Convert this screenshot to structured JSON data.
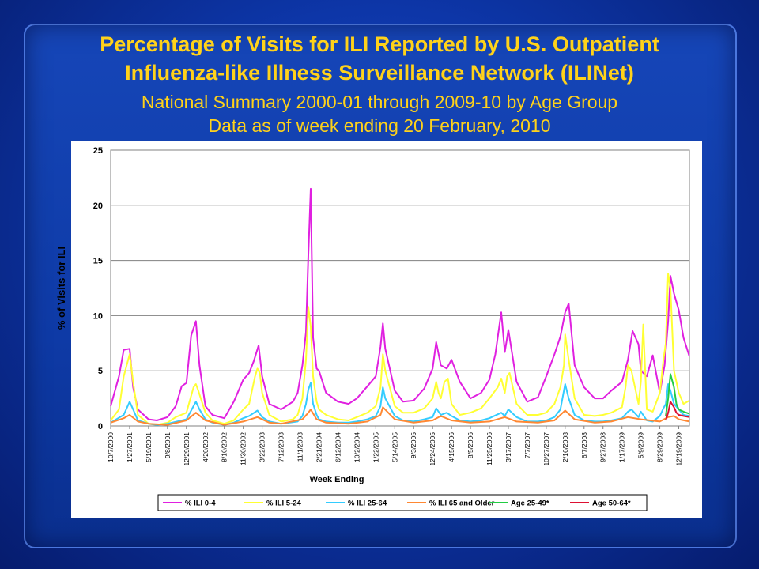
{
  "slide": {
    "title_line1": "Percentage of Visits for ILI Reported by U.S. Outpatient",
    "title_line2": "Influenza-like Illness Surveillance Network (ILINet)",
    "subtitle_line1": "National Summary 2000-01 through 2009-10 by Age Group",
    "subtitle_line2": "Data as of week ending 20 February,  2010"
  },
  "colors": {
    "title": "#ffd21a",
    "background": "#0e3aa6"
  },
  "chart_data": {
    "type": "line",
    "title": "",
    "xlabel": "Week Ending",
    "ylabel": "% of Visits for ILI",
    "ylim": [
      0,
      25
    ],
    "yticks": [
      0,
      5,
      10,
      15,
      20,
      25
    ],
    "grid": "horizontal",
    "legend_position": "bottom",
    "x_tick_labels": [
      "10/7/2000",
      "1/27/2001",
      "5/19/2001",
      "9/8/2001",
      "12/29/2001",
      "4/20/2002",
      "8/10/2002",
      "11/30/2002",
      "3/22/2003",
      "7/12/2003",
      "11/1/2003",
      "2/21/2004",
      "6/12/2004",
      "10/2/2004",
      "1/22/2005",
      "5/14/2005",
      "9/3/2005",
      "12/24/2005",
      "4/15/2006",
      "8/5/2006",
      "11/25/2006",
      "3/17/2007",
      "7/7/2007",
      "10/27/2007",
      "2/16/2008",
      "6/7/2008",
      "9/27/2008",
      "1/17/2009",
      "5/9/2009",
      "8/29/2009",
      "12/19/2009"
    ],
    "series": [
      {
        "name": "% ILI 0-4",
        "color": "#e020e0",
        "x": [
          "10/7/2000",
          "11/25/2000",
          "12/23/2000",
          "1/27/2001",
          "2/17/2001",
          "3/17/2001",
          "5/19/2001",
          "7/7/2001",
          "9/8/2001",
          "10/27/2001",
          "12/1/2001",
          "12/29/2001",
          "1/26/2002",
          "2/23/2002",
          "3/16/2002",
          "4/20/2002",
          "6/1/2002",
          "8/10/2002",
          "10/5/2002",
          "11/30/2002",
          "1/4/2003",
          "2/1/2003",
          "3/1/2003",
          "3/22/2003",
          "5/3/2003",
          "7/12/2003",
          "9/20/2003",
          "10/18/2003",
          "11/15/2003",
          "12/6/2003",
          "12/20/2003",
          "1/3/2004",
          "1/17/2004",
          "2/7/2004",
          "2/21/2004",
          "4/3/2004",
          "6/12/2004",
          "8/14/2004",
          "10/2/2004",
          "12/4/2004",
          "1/22/2005",
          "2/19/2005",
          "3/5/2005",
          "3/19/2005",
          "5/14/2005",
          "7/2/2005",
          "9/3/2005",
          "11/5/2005",
          "12/24/2005",
          "1/14/2006",
          "2/11/2006",
          "3/18/2006",
          "4/15/2006",
          "6/3/2006",
          "8/5/2006",
          "10/7/2006",
          "11/25/2006",
          "12/30/2006",
          "2/3/2007",
          "2/24/2007",
          "3/17/2007",
          "5/5/2007",
          "7/7/2007",
          "9/8/2007",
          "10/27/2007",
          "12/15/2007",
          "1/19/2008",
          "2/16/2008",
          "3/8/2008",
          "4/12/2008",
          "6/7/2008",
          "8/9/2008",
          "9/27/2008",
          "11/15/2008",
          "1/17/2009",
          "2/21/2009",
          "3/21/2009",
          "4/25/2009",
          "5/9/2009",
          "6/13/2009",
          "7/18/2009",
          "8/29/2009",
          "9/26/2009",
          "10/17/2009",
          "10/31/2009",
          "11/21/2009",
          "12/19/2009",
          "1/16/2010",
          "2/20/2010"
        ],
        "values": [
          1.8,
          4.5,
          6.9,
          7.0,
          3.5,
          1.5,
          0.6,
          0.5,
          0.8,
          1.8,
          3.6,
          3.9,
          8.2,
          9.5,
          5.5,
          1.8,
          1.0,
          0.7,
          2.2,
          4.2,
          4.8,
          5.9,
          7.3,
          4.5,
          2.0,
          1.5,
          2.2,
          3.0,
          5.5,
          8.5,
          15.5,
          21.5,
          8.0,
          5.2,
          5.0,
          3.0,
          2.2,
          2.0,
          2.5,
          3.6,
          4.5,
          7.2,
          9.3,
          7.0,
          3.2,
          2.2,
          2.3,
          3.4,
          5.2,
          7.6,
          5.5,
          5.2,
          6.0,
          4.0,
          2.5,
          3.0,
          4.2,
          6.5,
          10.3,
          6.7,
          8.7,
          4.0,
          2.2,
          2.6,
          4.5,
          6.5,
          8.1,
          10.3,
          11.1,
          5.5,
          3.5,
          2.5,
          2.5,
          3.2,
          4.0,
          6.0,
          8.6,
          7.4,
          5.0,
          4.5,
          6.4,
          3.0,
          5.5,
          9.5,
          13.6,
          12.0,
          10.5,
          8.0,
          6.3
        ]
      },
      {
        "name": "% ILI 5-24",
        "color": "#ffff33",
        "x": [
          "10/7/2000",
          "11/25/2000",
          "12/23/2000",
          "1/27/2001",
          "2/17/2001",
          "3/17/2001",
          "5/19/2001",
          "7/7/2001",
          "9/8/2001",
          "10/27/2001",
          "12/29/2001",
          "2/9/2002",
          "2/23/2002",
          "3/9/2002",
          "4/20/2002",
          "6/1/2002",
          "8/10/2002",
          "10/5/2002",
          "11/30/2002",
          "1/4/2003",
          "2/8/2003",
          "2/22/2003",
          "3/8/2003",
          "3/22/2003",
          "5/3/2003",
          "7/12/2003",
          "9/20/2003",
          "10/18/2003",
          "11/15/2003",
          "12/6/2003",
          "12/20/2003",
          "1/3/2004",
          "1/17/2004",
          "2/7/2004",
          "2/21/2004",
          "4/3/2004",
          "6/12/2004",
          "8/14/2004",
          "10/2/2004",
          "12/4/2004",
          "1/22/2005",
          "2/19/2005",
          "3/5/2005",
          "3/19/2005",
          "5/14/2005",
          "7/2/2005",
          "9/3/2005",
          "11/5/2005",
          "12/24/2005",
          "1/14/2006",
          "1/28/2006",
          "2/11/2006",
          "3/4/2006",
          "3/25/2006",
          "4/15/2006",
          "6/3/2006",
          "8/5/2006",
          "10/7/2006",
          "11/25/2006",
          "1/13/2007",
          "2/3/2007",
          "2/24/2007",
          "3/10/2007",
          "3/24/2007",
          "5/5/2007",
          "7/7/2007",
          "9/8/2007",
          "10/27/2007",
          "12/15/2007",
          "1/19/2008",
          "2/9/2008",
          "2/16/2008",
          "3/8/2008",
          "4/12/2008",
          "6/7/2008",
          "8/9/2008",
          "9/27/2008",
          "11/15/2008",
          "1/17/2009",
          "2/7/2009",
          "2/21/2009",
          "3/14/2009",
          "4/25/2009",
          "5/9/2009",
          "5/23/2009",
          "6/13/2009",
          "7/18/2009",
          "8/29/2009",
          "9/19/2009",
          "10/3/2009",
          "10/17/2009",
          "10/31/2009",
          "11/21/2009",
          "12/19/2009",
          "1/16/2010",
          "2/20/2010"
        ],
        "values": [
          0.5,
          1.5,
          4.5,
          6.5,
          4.0,
          1.0,
          0.2,
          0.1,
          0.3,
          0.8,
          1.2,
          3.5,
          3.8,
          3.2,
          1.2,
          0.5,
          0.2,
          0.5,
          1.5,
          2.0,
          4.5,
          5.2,
          4.8,
          3.0,
          1.0,
          0.4,
          0.6,
          1.0,
          2.5,
          6.0,
          10.8,
          9.0,
          4.5,
          2.2,
          1.5,
          1.0,
          0.6,
          0.5,
          0.8,
          1.2,
          1.8,
          3.5,
          6.5,
          5.0,
          1.8,
          1.2,
          1.2,
          1.6,
          2.5,
          4.0,
          3.0,
          2.5,
          4.0,
          4.3,
          2.0,
          1.0,
          1.2,
          1.6,
          2.5,
          3.5,
          4.3,
          3.0,
          4.5,
          4.8,
          2.0,
          1.0,
          1.0,
          1.2,
          2.0,
          3.5,
          5.5,
          8.3,
          6.0,
          2.5,
          1.0,
          0.9,
          1.0,
          1.2,
          1.7,
          3.5,
          5.5,
          5.0,
          2.0,
          4.0,
          9.2,
          1.5,
          1.3,
          3.0,
          6.0,
          7.5,
          13.8,
          12.5,
          5.0,
          3.0,
          2.0,
          2.3
        ]
      },
      {
        "name": "% ILI 25-64",
        "color": "#33ccff",
        "x": [
          "10/7/2000",
          "12/23/2000",
          "1/27/2001",
          "2/17/2001",
          "3/17/2001",
          "5/19/2001",
          "7/7/2001",
          "9/8/2001",
          "12/29/2001",
          "2/9/2002",
          "2/23/2002",
          "3/16/2002",
          "4/20/2002",
          "6/1/2002",
          "8/10/2002",
          "10/5/2002",
          "11/30/2002",
          "1/4/2003",
          "2/22/2003",
          "3/22/2003",
          "5/3/2003",
          "7/12/2003",
          "10/18/2003",
          "11/15/2003",
          "12/6/2003",
          "12/20/2003",
          "1/3/2004",
          "1/17/2004",
          "2/7/2004",
          "2/21/2004",
          "4/3/2004",
          "6/12/2004",
          "8/14/2004",
          "10/2/2004",
          "12/4/2004",
          "1/22/2005",
          "2/19/2005",
          "3/5/2005",
          "3/19/2005",
          "5/14/2005",
          "7/2/2005",
          "9/3/2005",
          "11/5/2005",
          "12/24/2005",
          "1/14/2006",
          "2/11/2006",
          "3/18/2006",
          "4/15/2006",
          "6/3/2006",
          "8/5/2006",
          "10/7/2006",
          "11/25/2006",
          "2/3/2007",
          "2/24/2007",
          "3/17/2007",
          "5/5/2007",
          "7/7/2007",
          "9/8/2007",
          "10/27/2007",
          "12/15/2007",
          "1/19/2008",
          "2/16/2008",
          "3/8/2008",
          "4/12/2008",
          "6/7/2008",
          "8/9/2008",
          "9/27/2008",
          "11/15/2008",
          "1/17/2009",
          "2/21/2009",
          "3/14/2009",
          "4/25/2009",
          "5/9/2009",
          "6/13/2009",
          "7/18/2009",
          "8/29/2009",
          "9/19/2009",
          "10/3/2009",
          "10/17/2009",
          "10/31/2009",
          "11/21/2009",
          "12/19/2009",
          "1/16/2010",
          "2/20/2010"
        ],
        "values": [
          0.3,
          1.0,
          2.2,
          1.5,
          0.5,
          0.2,
          0.1,
          0.2,
          0.6,
          1.8,
          2.2,
          1.5,
          0.6,
          0.3,
          0.1,
          0.3,
          0.7,
          0.9,
          1.4,
          0.8,
          0.4,
          0.2,
          0.4,
          0.9,
          2.0,
          3.3,
          3.9,
          2.0,
          1.0,
          0.6,
          0.4,
          0.3,
          0.3,
          0.4,
          0.6,
          0.9,
          1.8,
          3.5,
          2.5,
          0.9,
          0.5,
          0.4,
          0.6,
          0.8,
          1.6,
          1.0,
          1.2,
          0.9,
          0.5,
          0.4,
          0.5,
          0.7,
          1.2,
          0.9,
          1.5,
          0.8,
          0.4,
          0.4,
          0.5,
          0.8,
          1.5,
          3.8,
          2.5,
          1.0,
          0.5,
          0.4,
          0.4,
          0.5,
          0.7,
          1.3,
          1.5,
          0.8,
          1.3,
          0.5,
          0.4,
          0.9,
          1.6,
          2.0,
          3.8,
          3.2,
          2.0,
          1.5,
          1.0,
          0.9
        ]
      },
      {
        "name": "% ILI 65 and Older",
        "color": "#ff8833",
        "x": [
          "10/7/2000",
          "12/23/2000",
          "1/27/2001",
          "3/17/2001",
          "5/19/2001",
          "9/8/2001",
          "12/29/2001",
          "2/23/2002",
          "4/20/2002",
          "8/10/2002",
          "11/30/2002",
          "2/22/2003",
          "5/3/2003",
          "7/12/2003",
          "11/15/2003",
          "12/20/2003",
          "1/3/2004",
          "2/7/2004",
          "4/3/2004",
          "8/14/2004",
          "12/4/2004",
          "2/19/2005",
          "3/5/2005",
          "5/14/2005",
          "9/3/2005",
          "12/24/2005",
          "2/11/2006",
          "4/15/2006",
          "8/5/2006",
          "11/25/2006",
          "2/24/2007",
          "5/5/2007",
          "9/8/2007",
          "12/15/2007",
          "2/16/2008",
          "4/12/2008",
          "8/9/2008",
          "11/15/2008",
          "2/21/2009",
          "5/9/2009",
          "8/29/2009",
          "10/17/2009",
          "11/21/2009",
          "12/19/2009",
          "2/20/2010"
        ],
        "values": [
          0.3,
          0.7,
          1.0,
          0.4,
          0.2,
          0.1,
          0.5,
          1.2,
          0.5,
          0.1,
          0.4,
          0.8,
          0.3,
          0.2,
          0.6,
          1.2,
          1.5,
          0.6,
          0.3,
          0.2,
          0.4,
          1.0,
          1.7,
          0.6,
          0.3,
          0.5,
          0.9,
          0.5,
          0.3,
          0.4,
          0.8,
          0.4,
          0.3,
          0.5,
          1.4,
          0.6,
          0.3,
          0.4,
          0.8,
          0.6,
          0.4,
          0.8,
          0.9,
          0.6,
          0.4
        ]
      },
      {
        "name": "Age 25-49*",
        "color": "#22cc44",
        "x": [
          "10/3/2009",
          "10/17/2009",
          "10/31/2009",
          "11/21/2009",
          "12/5/2009",
          "12/19/2009",
          "1/16/2010",
          "2/20/2010"
        ],
        "values": [
          0.9,
          2.5,
          4.7,
          3.5,
          2.0,
          1.5,
          1.3,
          1.1
        ]
      },
      {
        "name": "Age 50-64*",
        "color": "#dd1133",
        "x": [
          "10/3/2009",
          "10/17/2009",
          "10/31/2009",
          "11/21/2009",
          "12/5/2009",
          "12/19/2009",
          "1/16/2010",
          "2/20/2010"
        ],
        "values": [
          0.5,
          1.2,
          2.2,
          1.7,
          1.2,
          1.0,
          0.9,
          0.8
        ]
      }
    ]
  }
}
